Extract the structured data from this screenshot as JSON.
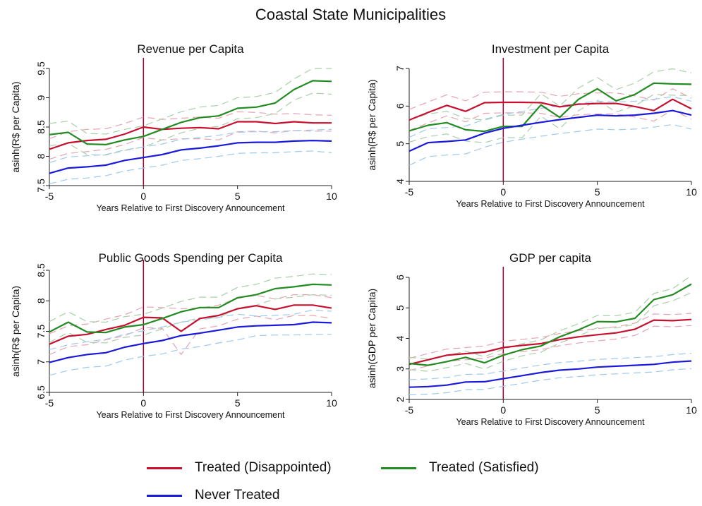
{
  "figure": {
    "title": "Coastal State Municipalities"
  },
  "legend": {
    "disappointed": "Treated (Disappointed)",
    "satisfied": "Treated (Satisfied)",
    "never": "Never Treated"
  },
  "colors": {
    "disappointed": "#c8102e",
    "satisfied": "#228b22",
    "never": "#1a1adb",
    "ci_disappointed": "#e8a3b0",
    "ci_satisfied": "#a9cfa9",
    "ci_never": "#9ec9ee",
    "vline": "#990033"
  },
  "chart_data": [
    {
      "type": "line",
      "title": "Revenue per Capita",
      "xlabel": "Years Relative to First Discovery Announcement",
      "ylabel": "asinh(R$ per Capita)",
      "xlim": [
        -5,
        10
      ],
      "ylim": [
        7.5,
        9.5
      ],
      "xticks": [
        -5,
        0,
        5,
        10
      ],
      "yticks": [
        7.5,
        8,
        8.5,
        9,
        9.5
      ],
      "x": [
        -5,
        -4,
        -3,
        -2,
        -1,
        0,
        1,
        2,
        3,
        4,
        5,
        6,
        7,
        8,
        9,
        10
      ],
      "vline": 0,
      "series": [
        {
          "name": "Treated (Disappointed)",
          "key": "disappointed",
          "values": [
            8.12,
            8.23,
            8.27,
            8.29,
            8.38,
            8.5,
            8.46,
            8.48,
            8.49,
            8.47,
            8.59,
            8.59,
            8.56,
            8.59,
            8.57,
            8.57
          ],
          "lower": [
            7.95,
            8.05,
            8.08,
            8.12,
            8.2,
            8.32,
            8.28,
            8.3,
            8.3,
            8.28,
            8.42,
            8.43,
            8.4,
            8.44,
            8.43,
            8.43
          ],
          "upper": [
            8.3,
            8.42,
            8.46,
            8.47,
            8.56,
            8.67,
            8.63,
            8.65,
            8.67,
            8.65,
            8.76,
            8.75,
            8.72,
            8.73,
            8.71,
            8.7
          ]
        },
        {
          "name": "Treated (Satisfied)",
          "key": "satisfied",
          "values": [
            8.37,
            8.41,
            8.21,
            8.2,
            8.28,
            8.34,
            8.46,
            8.58,
            8.66,
            8.69,
            8.82,
            8.84,
            8.91,
            9.14,
            9.29,
            9.28
          ],
          "lower": [
            8.18,
            8.22,
            8.03,
            8.02,
            8.1,
            8.16,
            8.28,
            8.4,
            8.48,
            8.51,
            8.64,
            8.66,
            8.73,
            8.96,
            9.08,
            9.06
          ],
          "upper": [
            8.56,
            8.6,
            8.39,
            8.38,
            8.46,
            8.52,
            8.64,
            8.76,
            8.84,
            8.87,
            9.0,
            9.02,
            9.09,
            9.32,
            9.5,
            9.5
          ]
        },
        {
          "name": "Never Treated",
          "key": "never",
          "values": [
            7.71,
            7.8,
            7.82,
            7.85,
            7.93,
            7.98,
            8.03,
            8.11,
            8.14,
            8.18,
            8.23,
            8.24,
            8.24,
            8.26,
            8.27,
            8.26
          ],
          "lower": [
            7.53,
            7.61,
            7.63,
            7.67,
            7.75,
            7.8,
            7.85,
            7.93,
            7.96,
            8.0,
            8.05,
            8.06,
            8.06,
            8.08,
            8.09,
            8.06
          ],
          "upper": [
            7.89,
            7.99,
            8.01,
            8.03,
            8.11,
            8.16,
            8.21,
            8.29,
            8.32,
            8.36,
            8.41,
            8.42,
            8.42,
            8.44,
            8.45,
            8.46
          ]
        }
      ]
    },
    {
      "type": "line",
      "title": "Investment per Capita",
      "xlabel": "Years Relative to First Discovery Announcement",
      "ylabel": "asinh(R$ per Capita)",
      "xlim": [
        -5,
        10
      ],
      "ylim": [
        4,
        7
      ],
      "xticks": [
        -5,
        0,
        5,
        10
      ],
      "yticks": [
        4,
        5,
        6,
        7
      ],
      "x": [
        -5,
        -4,
        -3,
        -2,
        -1,
        0,
        1,
        2,
        3,
        4,
        5,
        6,
        7,
        8,
        9,
        10
      ],
      "vline": 0,
      "series": [
        {
          "name": "Treated (Disappointed)",
          "key": "disappointed",
          "values": [
            5.63,
            5.83,
            6.02,
            5.86,
            6.09,
            6.1,
            6.1,
            6.09,
            5.98,
            6.05,
            6.07,
            6.07,
            5.99,
            5.88,
            6.18,
            5.93
          ],
          "lower": [
            5.35,
            5.55,
            5.74,
            5.58,
            5.81,
            5.82,
            5.82,
            5.81,
            5.7,
            5.77,
            5.79,
            5.79,
            5.71,
            5.6,
            5.9,
            5.65
          ],
          "upper": [
            5.91,
            6.11,
            6.3,
            6.14,
            6.37,
            6.38,
            6.38,
            6.37,
            6.26,
            6.33,
            6.35,
            6.35,
            6.27,
            6.16,
            6.46,
            6.21
          ]
        },
        {
          "name": "Treated (Satisfied)",
          "key": "satisfied",
          "values": [
            5.34,
            5.49,
            5.56,
            5.37,
            5.33,
            5.46,
            5.46,
            6.03,
            5.7,
            6.18,
            6.46,
            6.14,
            6.31,
            6.61,
            6.59,
            6.58
          ],
          "lower": [
            5.04,
            5.19,
            5.26,
            5.07,
            5.03,
            5.16,
            5.16,
            5.73,
            5.4,
            5.88,
            6.16,
            5.84,
            6.01,
            6.31,
            6.29,
            6.28
          ],
          "upper": [
            5.64,
            5.79,
            5.86,
            5.67,
            5.63,
            5.76,
            5.76,
            6.33,
            6.0,
            6.48,
            6.76,
            6.44,
            6.61,
            6.91,
            6.99,
            6.88
          ]
        },
        {
          "name": "Never Treated",
          "key": "never",
          "values": [
            4.8,
            5.03,
            5.06,
            5.1,
            5.28,
            5.41,
            5.49,
            5.57,
            5.64,
            5.7,
            5.76,
            5.74,
            5.76,
            5.81,
            5.88,
            5.76
          ],
          "lower": [
            4.43,
            4.66,
            4.7,
            4.73,
            4.91,
            5.04,
            5.12,
            5.2,
            5.27,
            5.33,
            5.39,
            5.37,
            5.39,
            5.44,
            5.51,
            5.39
          ],
          "upper": [
            5.17,
            5.4,
            5.43,
            5.47,
            5.65,
            5.78,
            5.86,
            5.94,
            6.01,
            6.07,
            6.13,
            6.11,
            6.13,
            6.18,
            6.25,
            6.13
          ]
        }
      ]
    },
    {
      "type": "line",
      "title": "Public Goods Spending per Capita",
      "xlabel": "Years Relative to First Discovery Announcement",
      "ylabel": "asinh(R$ per Capita)",
      "xlim": [
        -5,
        10
      ],
      "ylim": [
        6.5,
        8.5
      ],
      "xticks": [
        -5,
        0,
        5,
        10
      ],
      "yticks": [
        6.5,
        7,
        7.5,
        8,
        8.5
      ],
      "x": [
        -5,
        -4,
        -3,
        -2,
        -1,
        0,
        1,
        2,
        3,
        4,
        5,
        6,
        7,
        8,
        9,
        10
      ],
      "vline": 0,
      "series": [
        {
          "name": "Treated (Disappointed)",
          "key": "disappointed",
          "values": [
            7.29,
            7.42,
            7.45,
            7.53,
            7.6,
            7.73,
            7.72,
            7.5,
            7.71,
            7.76,
            7.87,
            7.92,
            7.86,
            7.93,
            7.93,
            7.88
          ],
          "lower": [
            7.12,
            7.25,
            7.28,
            7.36,
            7.43,
            7.56,
            7.55,
            7.12,
            7.54,
            7.59,
            7.7,
            7.75,
            7.69,
            7.76,
            7.76,
            7.71
          ],
          "upper": [
            7.46,
            7.59,
            7.62,
            7.7,
            7.77,
            7.9,
            7.89,
            7.87,
            7.88,
            7.93,
            8.04,
            8.09,
            8.03,
            8.1,
            8.1,
            8.05
          ]
        },
        {
          "name": "Treated (Satisfied)",
          "key": "satisfied",
          "values": [
            7.49,
            7.65,
            7.49,
            7.48,
            7.57,
            7.61,
            7.71,
            7.82,
            7.89,
            7.89,
            8.05,
            8.1,
            8.2,
            8.23,
            8.27,
            8.26
          ],
          "lower": [
            7.32,
            7.48,
            7.32,
            7.31,
            7.4,
            7.44,
            7.54,
            7.65,
            7.72,
            7.72,
            7.88,
            7.93,
            8.03,
            8.06,
            8.1,
            8.09
          ],
          "upper": [
            7.66,
            7.82,
            7.66,
            7.65,
            7.74,
            7.78,
            7.88,
            7.99,
            8.06,
            8.06,
            8.22,
            8.27,
            8.37,
            8.4,
            8.44,
            8.43
          ]
        },
        {
          "name": "Never Treated",
          "key": "never",
          "values": [
            6.99,
            7.07,
            7.12,
            7.15,
            7.24,
            7.3,
            7.35,
            7.43,
            7.47,
            7.52,
            7.57,
            7.59,
            7.6,
            7.61,
            7.65,
            7.64
          ],
          "lower": [
            6.78,
            6.86,
            6.91,
            6.93,
            7.03,
            7.09,
            7.13,
            7.21,
            7.25,
            7.31,
            7.36,
            7.43,
            7.44,
            7.44,
            7.45,
            7.45
          ],
          "upper": [
            7.2,
            7.28,
            7.33,
            7.37,
            7.45,
            7.51,
            7.57,
            7.65,
            7.69,
            7.73,
            7.78,
            7.75,
            7.76,
            7.78,
            7.85,
            7.83
          ]
        }
      ]
    },
    {
      "type": "line",
      "title": "GDP per capita",
      "xlabel": "Years Relative to First Discovery Announcement",
      "ylabel": "asinh(GDP per Capita)",
      "xlim": [
        -5,
        10
      ],
      "ylim": [
        2,
        6
      ],
      "xticks": [
        -5,
        0,
        5,
        10
      ],
      "yticks": [
        2,
        3,
        4,
        5,
        6
      ],
      "x": [
        -5,
        -4,
        -3,
        -2,
        -1,
        0,
        1,
        2,
        3,
        4,
        5,
        6,
        7,
        8,
        9,
        10
      ],
      "vline": 0,
      "series": [
        {
          "name": "Treated (Disappointed)",
          "key": "disappointed",
          "values": [
            3.15,
            3.3,
            3.45,
            3.5,
            3.55,
            3.7,
            3.77,
            3.83,
            3.96,
            4.05,
            4.12,
            4.18,
            4.3,
            4.6,
            4.58,
            4.62
          ],
          "lower": [
            2.95,
            3.1,
            3.25,
            3.3,
            3.35,
            3.5,
            3.57,
            3.63,
            3.76,
            3.85,
            3.92,
            3.98,
            4.1,
            4.4,
            4.38,
            4.42
          ],
          "upper": [
            3.35,
            3.5,
            3.65,
            3.7,
            3.75,
            3.9,
            3.97,
            4.03,
            4.16,
            4.25,
            4.32,
            4.38,
            4.5,
            4.8,
            4.78,
            4.82
          ]
        },
        {
          "name": "Treated (Satisfied)",
          "key": "satisfied",
          "values": [
            3.18,
            3.12,
            3.24,
            3.38,
            3.2,
            3.45,
            3.63,
            3.75,
            4.05,
            4.28,
            4.55,
            4.54,
            4.66,
            5.27,
            5.43,
            5.78
          ],
          "lower": [
            2.98,
            2.92,
            3.04,
            3.18,
            3.0,
            3.25,
            3.43,
            3.55,
            3.85,
            4.08,
            4.35,
            4.34,
            4.46,
            5.07,
            5.23,
            5.5
          ],
          "upper": [
            3.38,
            3.32,
            3.44,
            3.58,
            3.4,
            3.65,
            3.83,
            3.95,
            4.25,
            4.48,
            4.75,
            4.74,
            4.86,
            5.47,
            5.63,
            6.06
          ]
        },
        {
          "name": "Never Treated",
          "key": "never",
          "values": [
            2.4,
            2.42,
            2.47,
            2.57,
            2.58,
            2.68,
            2.78,
            2.88,
            2.96,
            3.0,
            3.06,
            3.09,
            3.12,
            3.15,
            3.22,
            3.26
          ],
          "lower": [
            2.15,
            2.17,
            2.22,
            2.32,
            2.33,
            2.43,
            2.53,
            2.63,
            2.71,
            2.75,
            2.81,
            2.84,
            2.87,
            2.9,
            2.97,
            3.01
          ],
          "upper": [
            2.65,
            2.67,
            2.72,
            2.82,
            2.83,
            2.93,
            3.03,
            3.13,
            3.21,
            3.25,
            3.31,
            3.34,
            3.37,
            3.4,
            3.47,
            3.51
          ]
        }
      ]
    }
  ]
}
